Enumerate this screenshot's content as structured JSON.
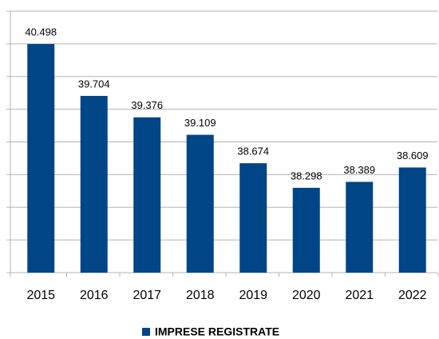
{
  "chart_data": {
    "type": "bar",
    "categories": [
      "2015",
      "2016",
      "2017",
      "2018",
      "2019",
      "2020",
      "2021",
      "2022"
    ],
    "series": [
      {
        "name": "IMPRESE REGISTRATE",
        "color": "#004586",
        "values": [
          40498,
          39704,
          39376,
          39109,
          38674,
          38298,
          38389,
          38609
        ],
        "value_labels": [
          "40.498",
          "39.704",
          "39.376",
          "39.109",
          "38.674",
          "38.298",
          "38.389",
          "38.609"
        ]
      }
    ],
    "ylim": [
      37000,
      41000
    ],
    "yticks": [
      37000,
      37500,
      38000,
      38500,
      39000,
      39500,
      40000,
      40500,
      41000
    ],
    "grid": true,
    "legend": "bottom"
  }
}
